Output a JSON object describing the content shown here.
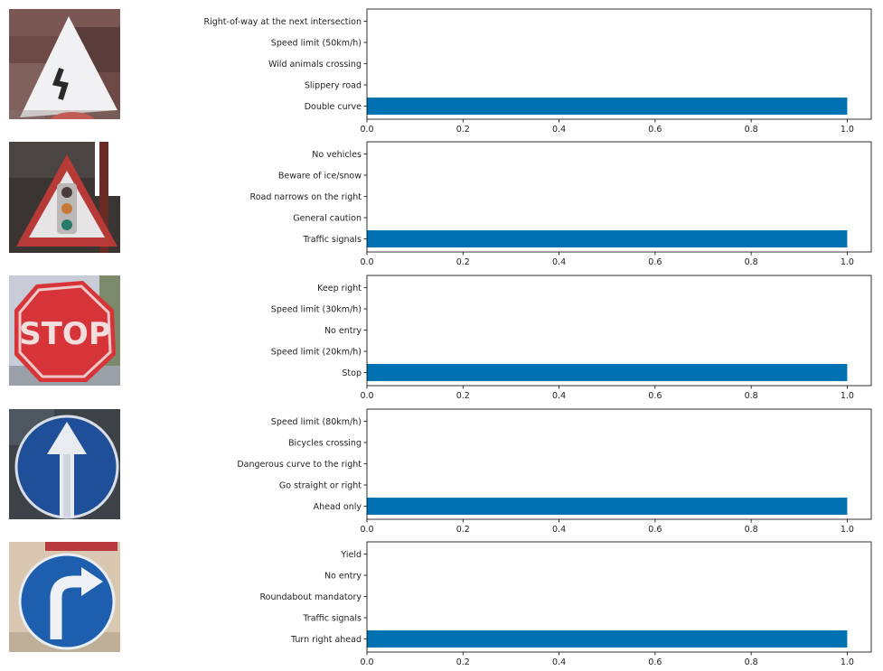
{
  "chart_data": [
    {
      "type": "bar",
      "orientation": "horizontal",
      "image_icon": "double-curve-sign-icon",
      "categories": [
        "Double curve",
        "Slippery road",
        "Wild animals crossing",
        "Speed limit (50km/h)",
        "Right-of-way at the next intersection"
      ],
      "values": [
        1.0,
        0.0,
        0.0,
        0.0,
        0.0
      ],
      "xlim": [
        0.0,
        1.05
      ],
      "xticks": [
        "0.0",
        "0.2",
        "0.4",
        "0.6",
        "0.8",
        "1.0"
      ],
      "bar_color": "#0072b2",
      "grid": false
    },
    {
      "type": "bar",
      "orientation": "horizontal",
      "image_icon": "traffic-signals-sign-icon",
      "categories": [
        "Traffic signals",
        "General caution",
        "Road narrows on the right",
        "Beware of ice/snow",
        "No vehicles"
      ],
      "values": [
        1.0,
        0.0,
        0.0,
        0.0,
        0.0
      ],
      "xlim": [
        0.0,
        1.05
      ],
      "xticks": [
        "0.0",
        "0.2",
        "0.4",
        "0.6",
        "0.8",
        "1.0"
      ],
      "bar_color": "#0072b2",
      "grid": false
    },
    {
      "type": "bar",
      "orientation": "horizontal",
      "image_icon": "stop-sign-icon",
      "image_text": "STOP",
      "categories": [
        "Stop",
        "Speed limit (20km/h)",
        "No entry",
        "Speed limit (30km/h)",
        "Keep right"
      ],
      "values": [
        1.0,
        0.0,
        0.0,
        0.0,
        0.0
      ],
      "xlim": [
        0.0,
        1.05
      ],
      "xticks": [
        "0.0",
        "0.2",
        "0.4",
        "0.6",
        "0.8",
        "1.0"
      ],
      "bar_color": "#0072b2",
      "grid": false
    },
    {
      "type": "bar",
      "orientation": "horizontal",
      "image_icon": "ahead-only-sign-icon",
      "categories": [
        "Ahead only",
        "Go straight or right",
        "Dangerous curve to the right",
        "Bicycles crossing",
        "Speed limit (80km/h)"
      ],
      "values": [
        1.0,
        0.0,
        0.0,
        0.0,
        0.0
      ],
      "xlim": [
        0.0,
        1.05
      ],
      "xticks": [
        "0.0",
        "0.2",
        "0.4",
        "0.6",
        "0.8",
        "1.0"
      ],
      "bar_color": "#0072b2",
      "grid": false
    },
    {
      "type": "bar",
      "orientation": "horizontal",
      "image_icon": "turn-right-ahead-sign-icon",
      "categories": [
        "Turn right ahead",
        "Traffic signals",
        "Roundabout mandatory",
        "No entry",
        "Yield"
      ],
      "values": [
        1.0,
        0.0,
        0.0,
        0.0,
        0.0
      ],
      "xlim": [
        0.0,
        1.05
      ],
      "xticks": [
        "0.0",
        "0.2",
        "0.4",
        "0.6",
        "0.8",
        "1.0"
      ],
      "bar_color": "#0072b2",
      "grid": false
    }
  ]
}
